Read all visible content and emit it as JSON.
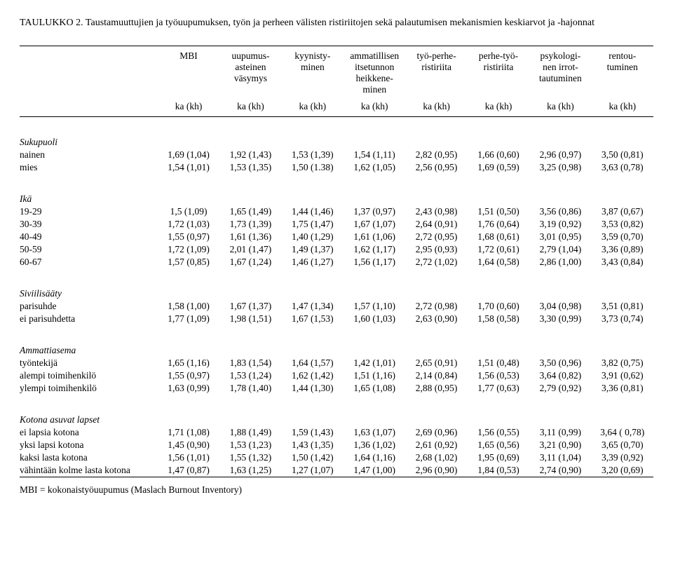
{
  "title": {
    "lead": "TAULUKKO 2.",
    "rest": "Taustamuuttujien ja työuupumuksen, työn ja perheen välisten ristiriitojen sekä palautumisen mekanismien keskiarvot ja -hajonnat"
  },
  "columns": [
    "MBI",
    "uupumus-\nasteinen\nväsymys",
    "kyynisty-\nminen",
    "ammatillisen\nitsetunnon\nheikkene-\nminen",
    "työ-perhe-\nristiriita",
    "perhe-työ-\nristiriita",
    "psykologi-\nnen irrot-\ntautuminen",
    "rentou-\ntuminen"
  ],
  "sublabel": "ka (kh)",
  "sections": [
    {
      "heading": "Sukupuoli",
      "rows": [
        {
          "label": "nainen",
          "vals": [
            "1,69 (1,04)",
            "1,92 (1,43)",
            "1,53 (1,39)",
            "1,54 (1,11)",
            "2,82 (0,95)",
            "1,66 (0,60)",
            "2,96 (0,97)",
            "3,50 (0,81)"
          ]
        },
        {
          "label": "mies",
          "vals": [
            "1,54 (1,01)",
            "1,53 (1,35)",
            "1,50 (1.38)",
            "1,62 (1,05)",
            "2,56 (0,95)",
            "1,69 (0,59)",
            "3,25 (0,98)",
            "3,63 (0,78)"
          ]
        }
      ]
    },
    {
      "heading": "Ikä",
      "rows": [
        {
          "label": "19-29",
          "vals": [
            "1,5 (1,09)",
            "1,65 (1,49)",
            "1,44 (1,46)",
            "1,37 (0,97)",
            "2,43 (0,98)",
            "1,51 (0,50)",
            "3,56 (0,86)",
            "3,87 (0,67)"
          ]
        },
        {
          "label": "30-39",
          "vals": [
            "1,72 (1,03)",
            "1,73 (1,39)",
            "1,75 (1,47)",
            "1,67 (1,07)",
            "2,64 (0,91)",
            "1,76 (0,64)",
            "3,19 (0,92)",
            "3,53 (0,82)"
          ]
        },
        {
          "label": "40-49",
          "vals": [
            "1,55 (0,97)",
            "1,61 (1,36)",
            "1,40 (1,29)",
            "1,61 (1,06)",
            "2,72 (0,95)",
            "1,68 (0,61)",
            "3,01 (0,95)",
            "3,59 (0,70)"
          ]
        },
        {
          "label": "50-59",
          "vals": [
            "1,72 (1,09)",
            "2,01 (1,47)",
            "1,49 (1,37)",
            "1,62 (1,17)",
            "2,95 (0,93)",
            "1,72 (0,61)",
            "2,79 (1,04)",
            "3,36 (0,89)"
          ]
        },
        {
          "label": "60-67",
          "vals": [
            "1,57 (0,85)",
            "1,67 (1,24)",
            "1,46 (1,27)",
            "1,56 (1,17)",
            "2,72 (1,02)",
            "1,64 (0,58)",
            "2,86 (1,00)",
            "3,43 (0,84)"
          ]
        }
      ]
    },
    {
      "heading": "Siviilisääty",
      "rows": [
        {
          "label": "parisuhde",
          "vals": [
            "1,58 (1,00)",
            "1,67 (1,37)",
            "1,47 (1,34)",
            "1,57 (1,10)",
            "2,72 (0,98)",
            "1,70 (0,60)",
            "3,04 (0,98)",
            "3,51 (0,81)"
          ]
        },
        {
          "label": "ei parisuhdetta",
          "vals": [
            "1,77 (1,09)",
            "1,98 (1,51)",
            "1,67 (1,53)",
            "1,60 (1,03)",
            "2,63 (0,90)",
            "1,58 (0,58)",
            "3,30 (0,99)",
            "3,73 (0,74)"
          ]
        }
      ]
    },
    {
      "heading": "Ammattiasema",
      "rows": [
        {
          "label": "työntekijä",
          "vals": [
            "1,65 (1,16)",
            "1,83 (1,54)",
            "1,64 (1,57)",
            "1,42 (1,01)",
            "2,65 (0,91)",
            "1,51 (0,48)",
            "3,50 (0,96)",
            "3,82 (0,75)"
          ]
        },
        {
          "label": "alempi toimihenkilö",
          "vals": [
            "1,55 (0,97)",
            "1,53 (1,24)",
            "1,62 (1,42)",
            "1,51 (1,16)",
            "2,14 (0,84)",
            "1,56 (0,53)",
            "3,64 (0,82)",
            "3,91 (0,62)"
          ]
        },
        {
          "label": "ylempi toimihenkilö",
          "vals": [
            "1,63 (0,99)",
            "1,78 (1,40)",
            "1,44 (1,30)",
            "1,65 (1,08)",
            "2,88 (0,95)",
            "1,77 (0,63)",
            "2,79 (0,92)",
            "3,36 (0,81)"
          ]
        }
      ]
    },
    {
      "heading": "Kotona asuvat lapset",
      "rows": [
        {
          "label": "ei lapsia kotona",
          "vals": [
            "1,71 (1,08)",
            "1,88 (1,49)",
            "1,59 (1,43)",
            "1,63 (1,07)",
            "2,69 (0,96)",
            "1,56 (0,55)",
            "3,11 (0,99)",
            "3,64 ( 0,78)"
          ]
        },
        {
          "label": "yksi lapsi kotona",
          "vals": [
            "1,45 (0,90)",
            "1,53 (1,23)",
            "1,43 (1,35)",
            "1,36 (1,02)",
            "2,61 (0,92)",
            "1,65 (0,56)",
            "3,21 (0,90)",
            "3,65 (0,70)"
          ]
        },
        {
          "label": "kaksi lasta kotona",
          "vals": [
            "1,56 (1,01)",
            "1,55 (1,32)",
            "1,50 (1,42)",
            "1,64 (1,16)",
            "2,68 (1,02)",
            "1,95 (0,69)",
            "3,11 (1,04)",
            "3,39 (0,92)"
          ]
        },
        {
          "label": "vähintään kolme lasta kotona",
          "vals": [
            "1,47 (0,87)",
            "1,63 (1,25)",
            "1,27 (1,07)",
            "1,47 (1,00)",
            "2,96 (0,90)",
            "1,84 (0,53)",
            "2,74 (0,90)",
            "3,20 (0,69)"
          ]
        }
      ]
    }
  ],
  "footnote": "MBI = kokonaistyöuupumus (Maslach Burnout Inventory)"
}
